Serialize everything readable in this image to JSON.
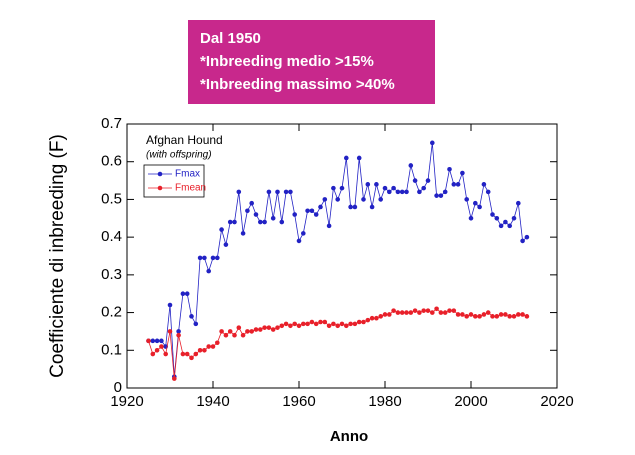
{
  "chart_data": {
    "type": "line",
    "annotation": [
      "Dal 1950",
      "*Inbreeding medio >15%",
      "*Inbreeding massimo >40%"
    ],
    "annotation_color": "#c8288c",
    "legend_title": "Afghan Hound",
    "legend_subtitle": "(with offspring)",
    "xlabel": "Anno",
    "ylabel": "Coefficiente di inbreeding (F)",
    "x": [
      1925,
      1926,
      1927,
      1928,
      1929,
      1930,
      1931,
      1932,
      1933,
      1934,
      1935,
      1936,
      1937,
      1938,
      1939,
      1940,
      1941,
      1942,
      1943,
      1944,
      1945,
      1946,
      1947,
      1948,
      1949,
      1950,
      1951,
      1952,
      1953,
      1954,
      1955,
      1956,
      1957,
      1958,
      1959,
      1960,
      1961,
      1962,
      1963,
      1964,
      1965,
      1966,
      1967,
      1968,
      1969,
      1970,
      1971,
      1972,
      1973,
      1974,
      1975,
      1976,
      1977,
      1978,
      1979,
      1980,
      1981,
      1982,
      1983,
      1984,
      1985,
      1986,
      1987,
      1988,
      1989,
      1990,
      1991,
      1992,
      1993,
      1994,
      1995,
      1996,
      1997,
      1998,
      1999,
      2000,
      2001,
      2002,
      2003,
      2004,
      2005,
      2006,
      2007,
      2008,
      2009,
      2010,
      2011,
      2012,
      2013
    ],
    "series": [
      {
        "name": "Fmax",
        "color": "#2222c4",
        "values": [
          0.125,
          0.125,
          0.125,
          0.125,
          0.11,
          0.22,
          0.03,
          0.15,
          0.25,
          0.25,
          0.19,
          0.17,
          0.345,
          0.345,
          0.31,
          0.345,
          0.345,
          0.42,
          0.38,
          0.44,
          0.44,
          0.52,
          0.41,
          0.47,
          0.49,
          0.46,
          0.44,
          0.44,
          0.52,
          0.45,
          0.52,
          0.44,
          0.52,
          0.52,
          0.46,
          0.39,
          0.41,
          0.47,
          0.47,
          0.46,
          0.48,
          0.5,
          0.43,
          0.53,
          0.5,
          0.53,
          0.61,
          0.48,
          0.48,
          0.61,
          0.5,
          0.54,
          0.48,
          0.54,
          0.5,
          0.53,
          0.52,
          0.53,
          0.52,
          0.52,
          0.52,
          0.59,
          0.55,
          0.52,
          0.53,
          0.55,
          0.65,
          0.51,
          0.51,
          0.52,
          0.58,
          0.54,
          0.54,
          0.57,
          0.5,
          0.45,
          0.49,
          0.48,
          0.54,
          0.52,
          0.46,
          0.45,
          0.43,
          0.44,
          0.43,
          0.45,
          0.49,
          0.39,
          0.4
        ]
      },
      {
        "name": "Fmean",
        "color": "#e8202a",
        "values": [
          0.125,
          0.09,
          0.1,
          0.11,
          0.09,
          0.15,
          0.025,
          0.14,
          0.09,
          0.09,
          0.08,
          0.09,
          0.1,
          0.1,
          0.11,
          0.11,
          0.12,
          0.15,
          0.14,
          0.15,
          0.14,
          0.16,
          0.14,
          0.15,
          0.15,
          0.155,
          0.155,
          0.16,
          0.16,
          0.155,
          0.16,
          0.165,
          0.17,
          0.165,
          0.17,
          0.165,
          0.17,
          0.17,
          0.175,
          0.17,
          0.175,
          0.175,
          0.165,
          0.17,
          0.165,
          0.17,
          0.165,
          0.17,
          0.17,
          0.175,
          0.175,
          0.18,
          0.185,
          0.185,
          0.19,
          0.195,
          0.195,
          0.205,
          0.2,
          0.2,
          0.2,
          0.2,
          0.205,
          0.2,
          0.205,
          0.205,
          0.2,
          0.21,
          0.2,
          0.2,
          0.205,
          0.205,
          0.195,
          0.195,
          0.19,
          0.195,
          0.19,
          0.19,
          0.195,
          0.2,
          0.19,
          0.19,
          0.195,
          0.195,
          0.19,
          0.19,
          0.195,
          0.195,
          0.19
        ]
      }
    ],
    "xlim": [
      1920,
      2020
    ],
    "xticks": [
      1920,
      1940,
      1960,
      1980,
      2000,
      2020
    ],
    "ylim": [
      0,
      0.7
    ],
    "yticks": [
      0,
      0.1,
      0.2,
      0.3,
      0.4,
      0.5,
      0.6,
      0.7
    ]
  }
}
